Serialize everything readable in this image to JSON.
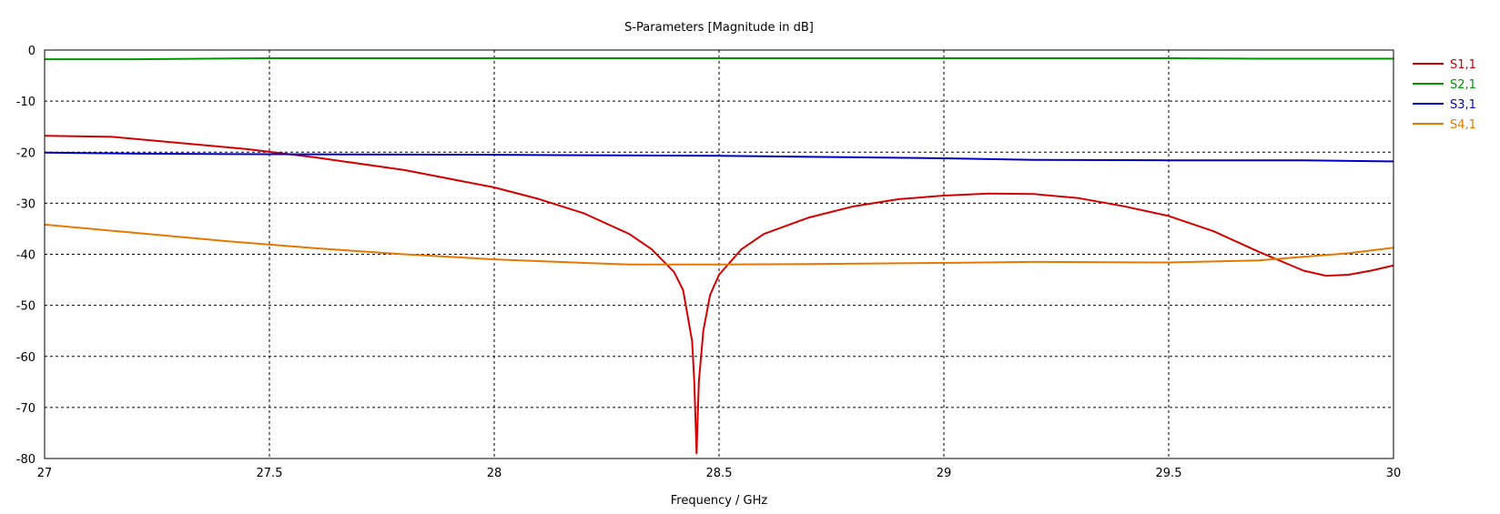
{
  "chart_data": {
    "type": "line",
    "title": "S-Parameters [Magnitude in dB]",
    "xlabel": "Frequency / GHz",
    "ylabel": "",
    "xlim": [
      27,
      30
    ],
    "ylim": [
      -80,
      0
    ],
    "x_ticks": [
      27,
      27.5,
      28,
      28.5,
      29,
      29.5,
      30
    ],
    "x_tick_labels": [
      "27",
      "27.5",
      "28",
      "28.5",
      "29",
      "29.5",
      "30"
    ],
    "y_ticks": [
      0,
      -10,
      -20,
      -30,
      -40,
      -50,
      -60,
      -70,
      -80
    ],
    "y_tick_labels": [
      "0",
      "-10",
      "-20",
      "-30",
      "-40",
      "-50",
      "-60",
      "-70",
      "-80"
    ],
    "grid": true,
    "legend_position": "right",
    "series": [
      {
        "name": "S1,1",
        "color": "#d40000",
        "points": [
          [
            27.0,
            -16.8
          ],
          [
            27.15,
            -17.0
          ],
          [
            27.3,
            -18.2
          ],
          [
            27.45,
            -19.4
          ],
          [
            27.6,
            -21.0
          ],
          [
            27.8,
            -23.5
          ],
          [
            28.0,
            -26.9
          ],
          [
            28.1,
            -29.2
          ],
          [
            28.2,
            -32.0
          ],
          [
            28.3,
            -36.0
          ],
          [
            28.35,
            -39.0
          ],
          [
            28.4,
            -43.5
          ],
          [
            28.42,
            -47.0
          ],
          [
            28.44,
            -57.0
          ],
          [
            28.445,
            -65.0
          ],
          [
            28.45,
            -79.0
          ],
          [
            28.455,
            -65.0
          ],
          [
            28.465,
            -55.0
          ],
          [
            28.48,
            -48.0
          ],
          [
            28.5,
            -44.0
          ],
          [
            28.55,
            -39.0
          ],
          [
            28.6,
            -36.0
          ],
          [
            28.7,
            -32.8
          ],
          [
            28.8,
            -30.6
          ],
          [
            28.9,
            -29.2
          ],
          [
            29.0,
            -28.5
          ],
          [
            29.1,
            -28.1
          ],
          [
            29.2,
            -28.2
          ],
          [
            29.3,
            -29.0
          ],
          [
            29.4,
            -30.6
          ],
          [
            29.5,
            -32.5
          ],
          [
            29.6,
            -35.5
          ],
          [
            29.7,
            -39.5
          ],
          [
            29.8,
            -43.2
          ],
          [
            29.85,
            -44.2
          ],
          [
            29.9,
            -44.0
          ],
          [
            29.95,
            -43.2
          ],
          [
            30.0,
            -42.2
          ]
        ]
      },
      {
        "name": "S2,1",
        "color": "#009600",
        "points": [
          [
            27.0,
            -1.8
          ],
          [
            27.2,
            -1.8
          ],
          [
            27.5,
            -1.6
          ],
          [
            28.0,
            -1.6
          ],
          [
            28.5,
            -1.6
          ],
          [
            29.0,
            -1.6
          ],
          [
            29.5,
            -1.6
          ],
          [
            29.7,
            -1.7
          ],
          [
            30.0,
            -1.7
          ]
        ]
      },
      {
        "name": "S3,1",
        "color": "#0000c8",
        "points": [
          [
            27.0,
            -20.1
          ],
          [
            27.2,
            -20.3
          ],
          [
            27.5,
            -20.4
          ],
          [
            28.0,
            -20.5
          ],
          [
            28.2,
            -20.6
          ],
          [
            28.5,
            -20.7
          ],
          [
            28.8,
            -21.0
          ],
          [
            29.0,
            -21.2
          ],
          [
            29.2,
            -21.5
          ],
          [
            29.5,
            -21.6
          ],
          [
            29.8,
            -21.6
          ],
          [
            30.0,
            -21.8
          ]
        ]
      },
      {
        "name": "S4,1",
        "color": "#e67800",
        "points": [
          [
            27.0,
            -34.2
          ],
          [
            27.2,
            -35.8
          ],
          [
            27.4,
            -37.4
          ],
          [
            27.6,
            -38.8
          ],
          [
            27.8,
            -40.0
          ],
          [
            28.0,
            -41.0
          ],
          [
            28.2,
            -41.7
          ],
          [
            28.3,
            -42.0
          ],
          [
            28.5,
            -42.0
          ],
          [
            28.7,
            -41.9
          ],
          [
            29.0,
            -41.7
          ],
          [
            29.2,
            -41.5
          ],
          [
            29.5,
            -41.6
          ],
          [
            29.7,
            -41.2
          ],
          [
            29.8,
            -40.5
          ],
          [
            29.9,
            -39.8
          ],
          [
            30.0,
            -38.7
          ]
        ]
      }
    ]
  }
}
